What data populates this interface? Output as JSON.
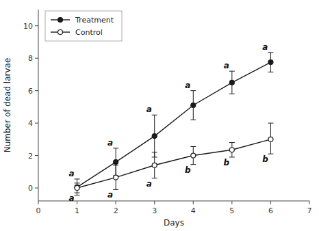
{
  "chart_data": {
    "type": "line",
    "x": [
      1,
      2,
      3,
      4,
      5,
      6
    ],
    "xlabel": "Days",
    "ylabel": "Number of dead larvae",
    "xlim": [
      0,
      7
    ],
    "ylim": [
      -0.8,
      11
    ],
    "xticks": [
      0,
      1,
      2,
      3,
      4,
      5,
      6,
      7
    ],
    "yticks": [
      0,
      2,
      4,
      6,
      8,
      10
    ],
    "legend": "upper-left",
    "series": [
      {
        "name": "Treatment",
        "color": "#1a1a1a",
        "marker": "circle",
        "line_style": "solid",
        "values": [
          0.05,
          1.6,
          3.2,
          5.1,
          6.5,
          7.75
        ],
        "error_up": [
          0.5,
          0.85,
          1.3,
          0.9,
          0.7,
          0.6
        ],
        "error_down": [
          0.5,
          0.85,
          1.3,
          0.9,
          0.7,
          0.6
        ],
        "annotations": [
          "a",
          "a",
          "a",
          "a",
          "a",
          "a"
        ]
      },
      {
        "name": "Control",
        "color": "#1a1a1a",
        "marker": "circle-open",
        "line_style": "solid",
        "values": [
          0.0,
          0.65,
          1.4,
          2.0,
          2.35,
          3.0
        ],
        "error_up": [
          0.3,
          0.75,
          0.8,
          0.55,
          0.45,
          1.0
        ],
        "error_down": [
          0.3,
          0.75,
          0.8,
          0.55,
          0.45,
          0.9
        ],
        "annotations": [
          "a",
          "a",
          "a",
          "b",
          "b",
          "b"
        ]
      }
    ]
  }
}
